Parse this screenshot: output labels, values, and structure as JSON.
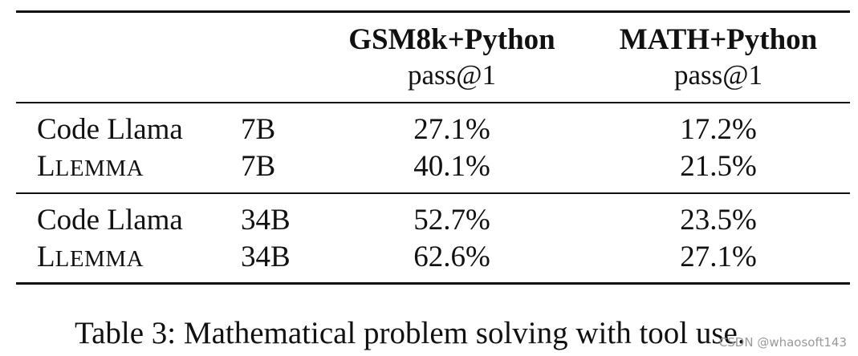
{
  "table": {
    "headers": [
      {
        "title": "GSM8k+Python",
        "subtitle": "pass@1"
      },
      {
        "title": "MATH+Python",
        "subtitle": "pass@1"
      }
    ],
    "rows": [
      {
        "model": "Code Llama",
        "size": "7B",
        "gsm8k": "27.1%",
        "math": "17.2%"
      },
      {
        "model_initial": "L",
        "model_rest": "LEMMA",
        "size": "7B",
        "gsm8k": "40.1%",
        "math": "21.5%"
      },
      {
        "model": "Code Llama",
        "size": "34B",
        "gsm8k": "52.7%",
        "math": "23.5%"
      },
      {
        "model_initial": "L",
        "model_rest": "LEMMA",
        "size": "34B",
        "gsm8k": "62.6%",
        "math": "27.1%"
      }
    ]
  },
  "caption": "Table 3: Mathematical problem solving with tool use.",
  "watermark": "CSDN @whaosoft143"
}
